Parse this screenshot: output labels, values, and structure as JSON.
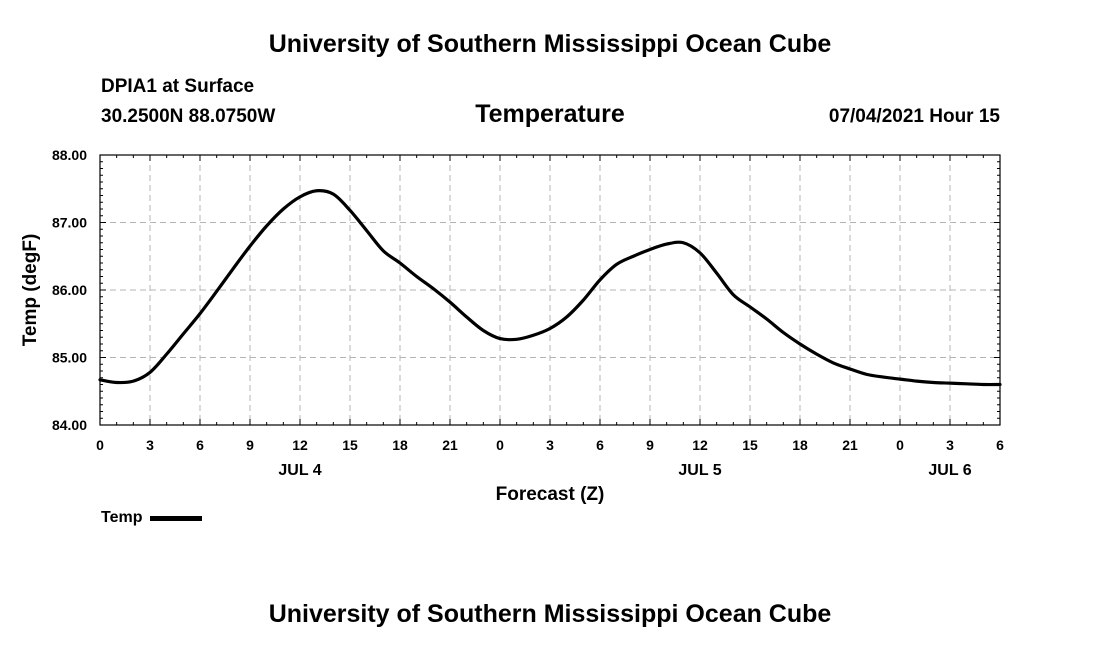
{
  "header": {
    "org_title": "University of Southern Mississippi Ocean Cube",
    "station": "DPIA1 at Surface",
    "coords": "30.2500N  88.0750W",
    "parameter": "Temperature",
    "valid_time": "07/04/2021 Hour 15"
  },
  "footer": {
    "org_title": "University of Southern Mississippi Ocean Cube"
  },
  "legend": {
    "label": "Temp",
    "color": "#000000"
  },
  "chart_data": {
    "type": "line",
    "title": "Temperature",
    "xlabel": "Forecast (Z)",
    "ylabel": "Temp (degF)",
    "xlim": [
      0,
      54
    ],
    "ylim": [
      84,
      88
    ],
    "grid": true,
    "x_tick_values": [
      0,
      3,
      6,
      9,
      12,
      15,
      18,
      21,
      24,
      27,
      30,
      33,
      36,
      39,
      42,
      45,
      48,
      51,
      54
    ],
    "x_tick_labels": [
      "0",
      "3",
      "6",
      "9",
      "12",
      "15",
      "18",
      "21",
      "0",
      "3",
      "6",
      "9",
      "12",
      "15",
      "18",
      "21",
      "0",
      "3",
      "6"
    ],
    "y_tick_values": [
      84,
      85,
      86,
      87,
      88
    ],
    "y_tick_labels": [
      "84.00",
      "85.00",
      "86.00",
      "87.00",
      "88.00"
    ],
    "date_labels": [
      {
        "x": 12,
        "label": "JUL 4"
      },
      {
        "x": 36,
        "label": "JUL 5"
      },
      {
        "x": 51,
        "label": "JUL 6"
      }
    ],
    "series": [
      {
        "name": "Temp",
        "color": "#000000",
        "x": [
          0,
          1,
          2,
          3,
          4,
          5,
          6,
          7,
          8,
          9,
          10,
          11,
          12,
          13,
          14,
          15,
          16,
          17,
          18,
          19,
          20,
          21,
          22,
          23,
          24,
          25,
          26,
          27,
          28,
          29,
          30,
          31,
          32,
          33,
          34,
          35,
          36,
          37,
          38,
          39,
          40,
          41,
          42,
          43,
          44,
          45,
          46,
          47,
          48,
          49,
          50,
          51,
          52,
          53,
          54
        ],
        "values": [
          84.67,
          84.63,
          84.65,
          84.78,
          85.05,
          85.35,
          85.65,
          85.98,
          86.32,
          86.65,
          86.95,
          87.2,
          87.38,
          87.47,
          87.42,
          87.18,
          86.88,
          86.58,
          86.4,
          86.2,
          86.02,
          85.82,
          85.6,
          85.4,
          85.28,
          85.27,
          85.33,
          85.43,
          85.6,
          85.85,
          86.15,
          86.38,
          86.5,
          86.6,
          86.68,
          86.7,
          86.55,
          86.25,
          85.93,
          85.75,
          85.57,
          85.37,
          85.2,
          85.05,
          84.92,
          84.83,
          84.75,
          84.71,
          84.68,
          84.65,
          84.63,
          84.62,
          84.61,
          84.6,
          84.6
        ]
      }
    ]
  }
}
